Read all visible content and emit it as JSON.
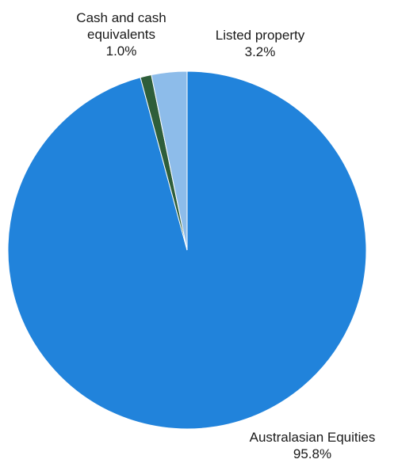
{
  "chart_data": {
    "type": "pie",
    "title": "",
    "start_angle_deg": 0,
    "direction": "clockwise",
    "legend": "none",
    "slices": [
      {
        "label_lines": [
          "Australasian Equities"
        ],
        "value_label": "95.8%",
        "value": 95.8,
        "color": "#2183DB"
      },
      {
        "label_lines": [
          "Cash and cash",
          "equivalents"
        ],
        "value_label": "1.0%",
        "value": 1.0,
        "color": "#2E5E3A"
      },
      {
        "label_lines": [
          "Listed property"
        ],
        "value_label": "3.2%",
        "value": 3.2,
        "color": "#8DBCEA"
      }
    ]
  }
}
